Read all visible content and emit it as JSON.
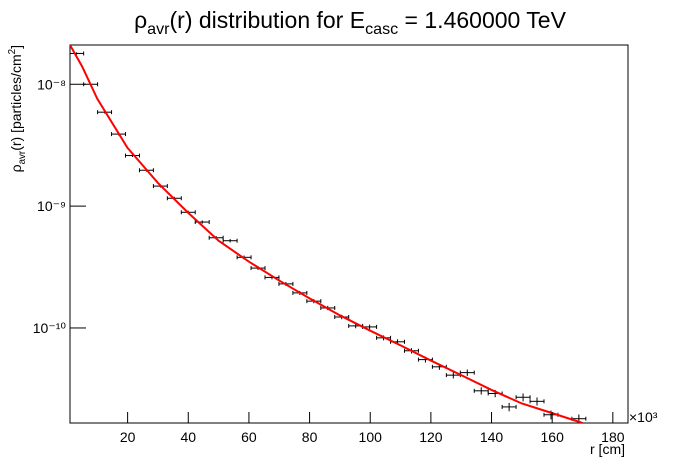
{
  "chart_data": {
    "type": "scatter",
    "title_parts": [
      "ρ",
      "avr",
      "(r) distribution for E",
      "casc",
      " = 1.460000 TeV"
    ],
    "y_label_parts": [
      "ρ",
      "avr",
      "(r) [particles/cm",
      "2",
      "]"
    ],
    "x_label": "r [cm]",
    "x_exponent_label": "×10³",
    "log_y": true,
    "xlim": [
      1,
      185
    ],
    "ylim": [
      1.66e-11,
      2.1e-08
    ],
    "xticks": [
      20,
      40,
      60,
      80,
      100,
      120,
      140,
      160,
      180
    ],
    "yticks": [
      {
        "value": 1e-10,
        "label": "10⁻¹⁰"
      },
      {
        "value": 1e-09,
        "label": "10⁻⁹"
      },
      {
        "value": 1e-08,
        "label": "10⁻⁸"
      }
    ],
    "series": [
      {
        "color": "#000000",
        "x": [
          3.2,
          7.8,
          12.4,
          17.0,
          21.6,
          26.2,
          30.8,
          35.4,
          40.0,
          44.6,
          49.2,
          53.8,
          58.4,
          63.0,
          67.6,
          72.2,
          76.8,
          81.4,
          86.0,
          90.6,
          95.2,
          99.8,
          104.4,
          109.0,
          113.6,
          118.2,
          122.8,
          127.4,
          132.0,
          136.6,
          141.2,
          145.8,
          150.4,
          155.0,
          159.6,
          168.8
        ],
        "values": [
          1.79e-08,
          1e-08,
          5.9e-09,
          3.9e-09,
          2.6e-09,
          1.97e-09,
          1.46e-09,
          1.16e-09,
          8.9e-10,
          7.4e-10,
          5.5e-10,
          5.2e-10,
          3.8e-10,
          3.1e-10,
          2.6e-10,
          2.3e-10,
          1.94e-10,
          1.66e-10,
          1.46e-10,
          1.23e-10,
          1.04e-10,
          1.02e-10,
          8.3e-11,
          7.7e-11,
          6.5e-11,
          5.5e-11,
          4.8e-11,
          4.1e-11,
          4.3e-11,
          3.05e-11,
          2.9e-11,
          2.25e-11,
          2.7e-11,
          2.5e-11,
          1.94e-11,
          1.8e-11
        ],
        "xerr": 2.3,
        "yerr": [
          4e-10,
          2e-10,
          1.4e-10,
          1e-10,
          7e-11,
          5.5e-11,
          4e-11,
          3.3e-11,
          2.7e-11,
          2.3e-11,
          1.8e-11,
          1.7e-11,
          1.3e-11,
          1.1e-11,
          9.5e-12,
          8.5e-12,
          7.5e-12,
          6.5e-12,
          6e-12,
          5.2e-12,
          4.6e-12,
          4.5e-12,
          3.9e-12,
          3.7e-12,
          3.3e-12,
          3e-12,
          2.7e-12,
          2.5e-12,
          2.6e-12,
          2.1e-12,
          2e-12,
          1.8e-12,
          2e-12,
          1.9e-12,
          1.6e-12,
          1.5e-12
        ]
      },
      {
        "color": "#ff0000",
        "x": [
          1,
          5,
          10,
          20,
          30,
          40,
          50,
          60,
          70,
          80,
          90,
          100,
          110,
          120,
          130,
          140,
          150,
          160,
          170
        ],
        "values": [
          2.1e-08,
          1.4e-08,
          7.6e-09,
          3e-09,
          1.55e-09,
          8.8e-10,
          5.2e-10,
          3.5e-10,
          2.45e-10,
          1.75e-10,
          1.27e-10,
          9.5e-11,
          7.2e-11,
          5.4e-11,
          4.1e-11,
          3.1e-11,
          2.4e-11,
          2e-11,
          1.66e-11
        ]
      }
    ]
  }
}
